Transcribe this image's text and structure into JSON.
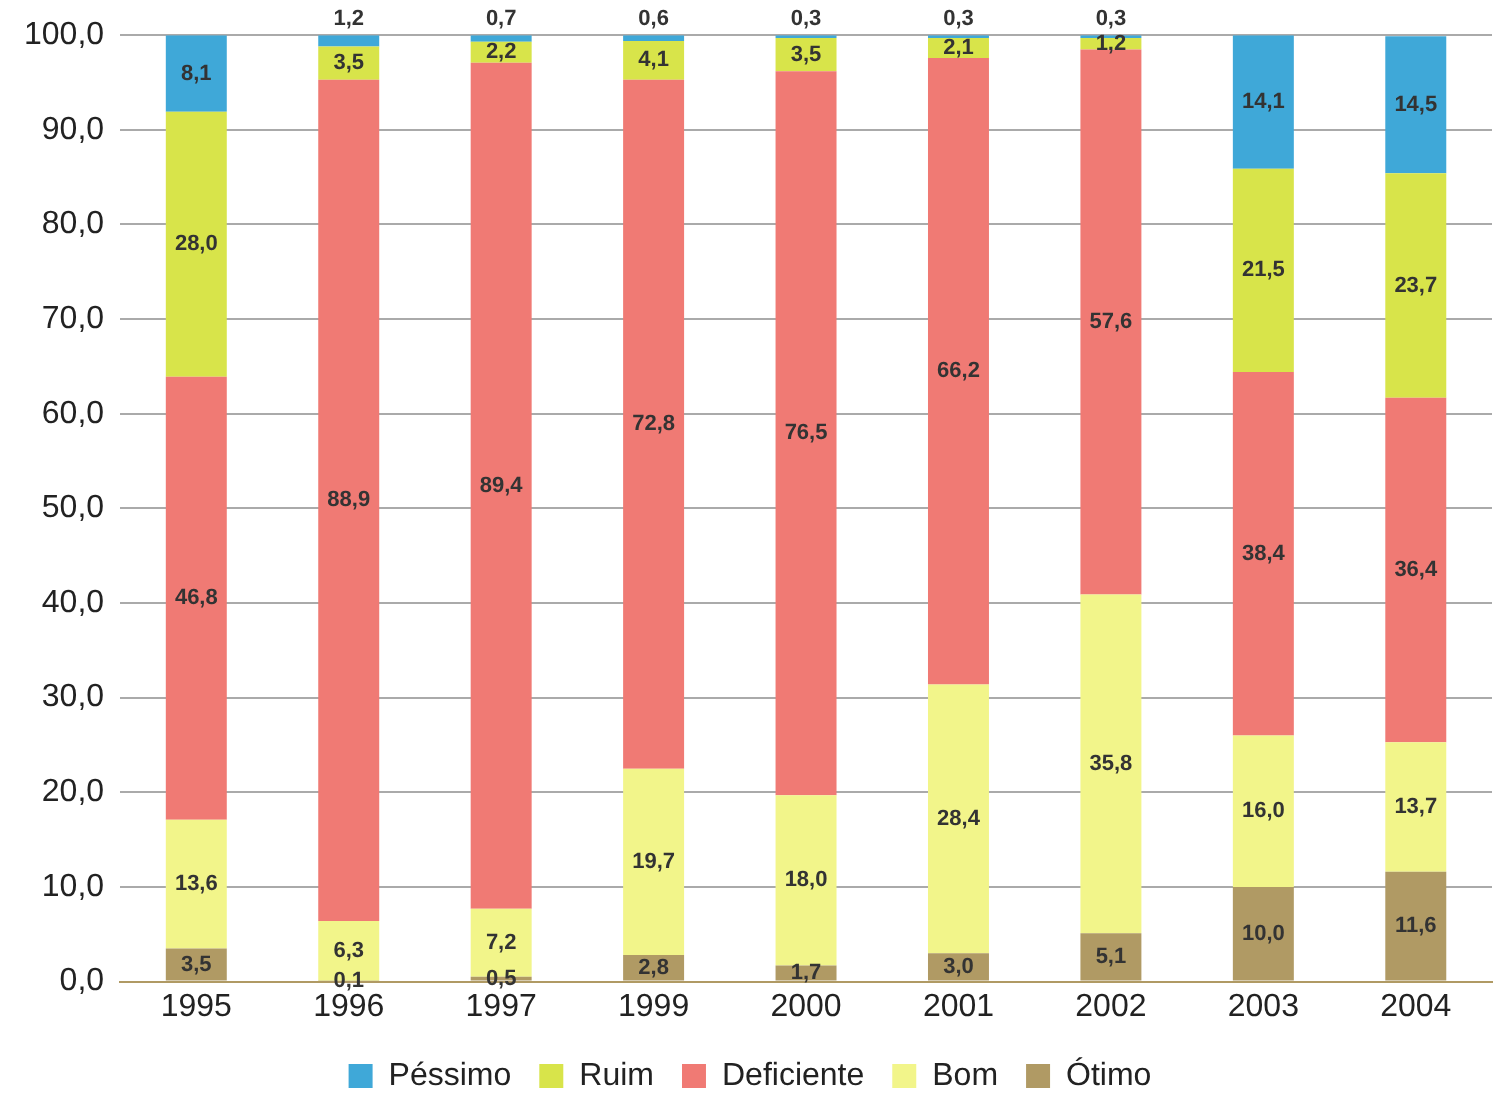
{
  "chart_data": {
    "type": "bar",
    "stacked": true,
    "categories": [
      "1995",
      "1996",
      "1997",
      "1999",
      "2000",
      "2001",
      "2002",
      "2003",
      "2004"
    ],
    "series": [
      {
        "name": "Ótimo",
        "color": "#b09a64",
        "values": [
          3.5,
          0.1,
          0.5,
          2.8,
          1.7,
          3.0,
          5.1,
          10.0,
          11.6
        ],
        "value_labels": [
          "3,5",
          "0,1",
          "0,5",
          "2,8",
          "1,7",
          "3,0",
          "5,1",
          "10,0",
          "11,6"
        ]
      },
      {
        "name": "Bom",
        "color": "#f2f58a",
        "values": [
          13.6,
          6.3,
          7.2,
          19.7,
          18.0,
          28.4,
          35.8,
          16.0,
          13.7
        ],
        "value_labels": [
          "13,6",
          "6,3",
          "7,2",
          "19,7",
          "18,0",
          "28,4",
          "35,8",
          "16,0",
          "13,7"
        ]
      },
      {
        "name": "Deficiente",
        "color": "#f07a74",
        "values": [
          46.8,
          88.9,
          89.4,
          72.8,
          76.5,
          66.2,
          57.6,
          38.4,
          36.4
        ],
        "value_labels": [
          "46,8",
          "88,9",
          "89,4",
          "72,8",
          "76,5",
          "66,2",
          "57,6",
          "38,4",
          "36,4"
        ]
      },
      {
        "name": "Ruim",
        "color": "#d8e44a",
        "values": [
          28.0,
          3.5,
          2.2,
          4.1,
          3.5,
          2.1,
          1.2,
          21.5,
          23.7
        ],
        "value_labels": [
          "28,0",
          "3,5",
          "2,2",
          "4,1",
          "3,5",
          "2,1",
          "1,2",
          "21,5",
          "23,7"
        ]
      },
      {
        "name": "Péssimo",
        "color": "#3fa8d8",
        "values": [
          8.1,
          1.2,
          0.7,
          0.6,
          0.3,
          0.3,
          0.3,
          14.1,
          14.5
        ],
        "value_labels": [
          "8,1",
          "1,2",
          "0,7",
          "0,6",
          "0,3",
          "0,3",
          "0,3",
          "14,1",
          "14,5"
        ]
      }
    ],
    "ylim": [
      0,
      100
    ],
    "yticks": [
      {
        "value": 0,
        "label": "0,0"
      },
      {
        "value": 10,
        "label": "10,0"
      },
      {
        "value": 20,
        "label": "20,0"
      },
      {
        "value": 30,
        "label": "30,0"
      },
      {
        "value": 40,
        "label": "40,0"
      },
      {
        "value": 50,
        "label": "50,0"
      },
      {
        "value": 60,
        "label": "60,0"
      },
      {
        "value": 70,
        "label": "70,0"
      },
      {
        "value": 80,
        "label": "80,0"
      },
      {
        "value": 90,
        "label": "90,0"
      },
      {
        "value": 100,
        "label": "100,0"
      }
    ],
    "grid": "y",
    "legend": "bottom"
  }
}
